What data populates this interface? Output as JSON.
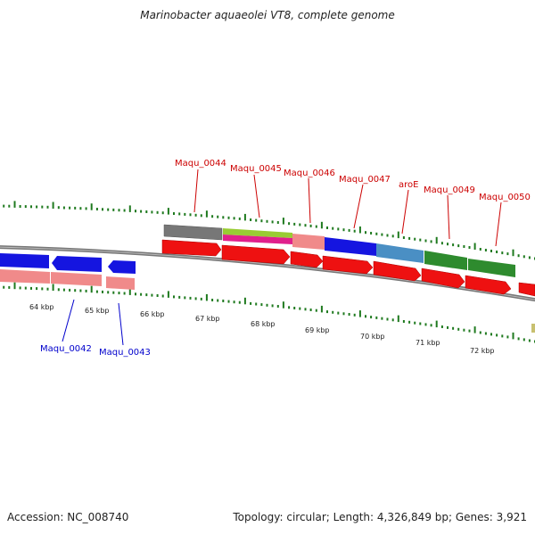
{
  "title": "Marinobacter aquaeolei VT8, complete genome",
  "footer": {
    "accession": "Accession: NC_008740",
    "stats": "Topology: circular; Length: 4,326,849 bp; Genes: 3,921"
  },
  "colors": {
    "backbone": "#777777",
    "label_forward": "#cc0000",
    "label_reverse": "#0000cc"
  },
  "gene_labels_forward": [
    "Maqu_0044",
    "Maqu_0045",
    "Maqu_0046",
    "Maqu_0047",
    "aroE",
    "Maqu_0049",
    "Maqu_0050"
  ],
  "gene_labels_reverse": [
    "Maqu_0042",
    "Maqu_0043"
  ],
  "kbp_ticks": [
    "64 kbp",
    "65 kbp",
    "66 kbp",
    "67 kbp",
    "68 kbp",
    "69 kbp",
    "70 kbp",
    "71 kbp",
    "72 kbp"
  ]
}
